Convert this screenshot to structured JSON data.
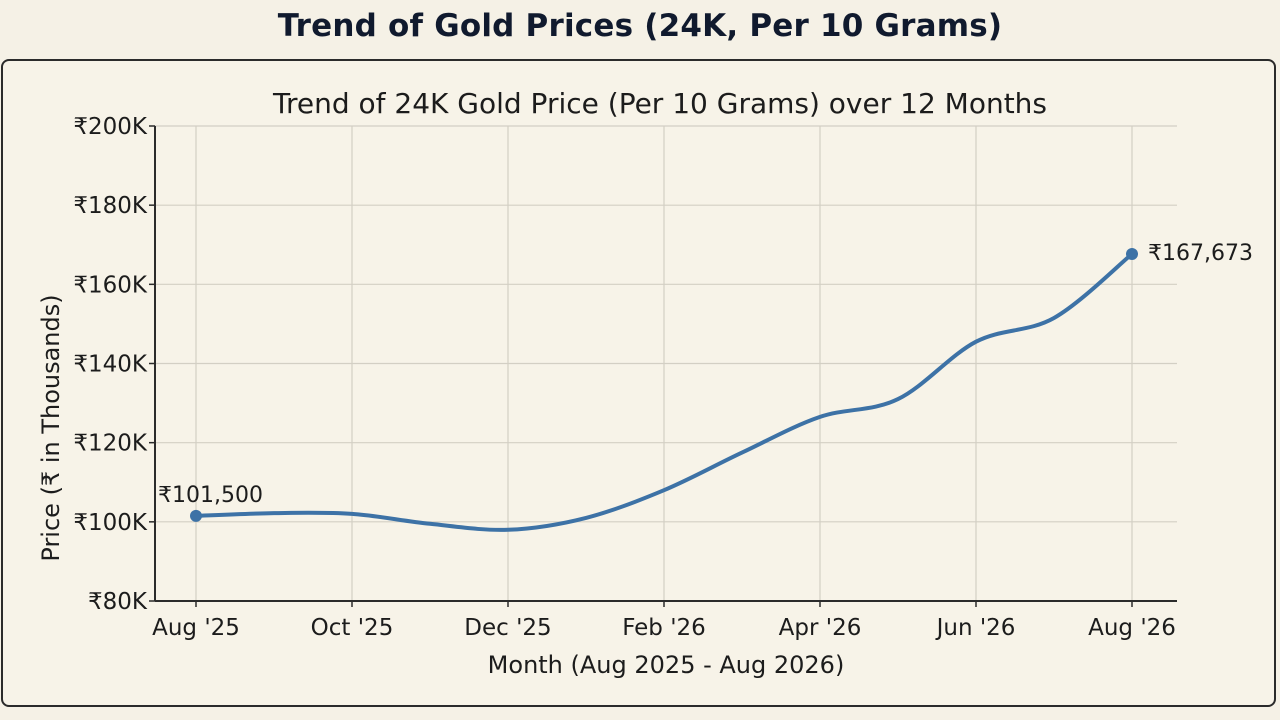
{
  "page": {
    "heading": "Trend of Gold Prices (24K, Per 10 Grams)"
  },
  "colors": {
    "background": "#f5f1e6",
    "line": "#3d72a6",
    "grid": "#d3cfc4",
    "axis": "#2b2b2b"
  },
  "chart_data": {
    "type": "line",
    "title": "Trend of 24K Gold Price (Per 10 Grams) over 12 Months",
    "xlabel": "Month (Aug 2025 - Aug 2026)",
    "ylabel": "Price (₹ in Thousands)",
    "x_ticks": [
      "Aug '25",
      "Oct '25",
      "Dec '25",
      "Feb '26",
      "Apr '26",
      "Jun '26",
      "Aug '26"
    ],
    "y_ticks": [
      "₹80K",
      "₹100K",
      "₹120K",
      "₹140K",
      "₹160K",
      "₹180K",
      "₹200K"
    ],
    "y_tick_values": [
      80000,
      100000,
      120000,
      140000,
      160000,
      180000,
      200000
    ],
    "ylim": [
      80000,
      200000
    ],
    "grid": true,
    "series": [
      {
        "x": [
          "Aug '25",
          "Sep '25",
          "Oct '25",
          "Nov '25",
          "Dec '25",
          "Jan '26",
          "Feb '26",
          "Mar '26",
          "Apr '26",
          "May '26",
          "Jun '26",
          "Jul '26",
          "Aug '26"
        ],
        "values": [
          101500,
          102200,
          102000,
          99500,
          98000,
          101000,
          108000,
          117500,
          126500,
          131000,
          145500,
          151500,
          167673
        ]
      }
    ],
    "annotations": [
      {
        "label": "₹101,500",
        "point": "Aug '25",
        "value": 101500
      },
      {
        "label": "₹167,673",
        "point": "Aug '26",
        "value": 167673
      }
    ]
  }
}
